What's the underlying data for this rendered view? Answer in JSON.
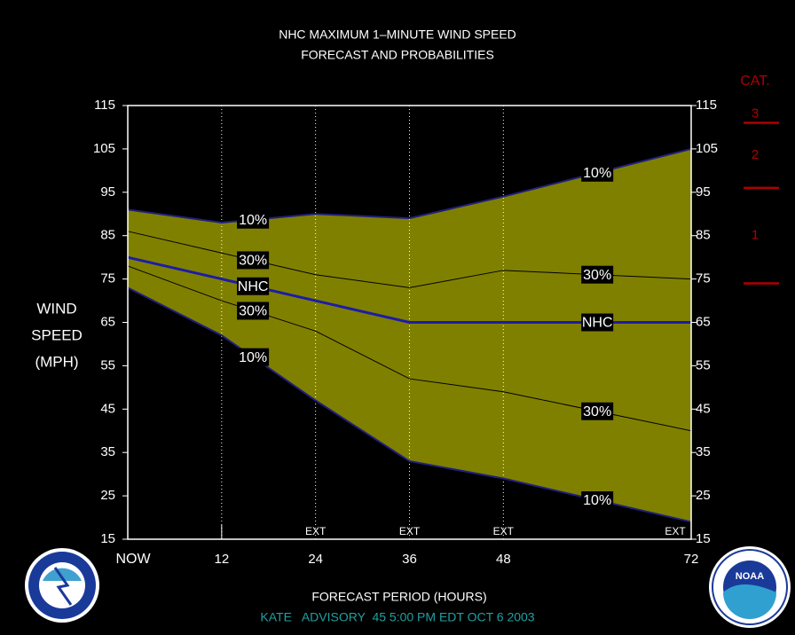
{
  "chart_data": {
    "type": "line",
    "title": "NHC MAXIMUM 1–MINUTE WIND SPEED",
    "subtitle": "FORECAST AND PROBABILITIES",
    "y_label": [
      "WIND",
      "SPEED",
      "(MPH)"
    ],
    "x_label": "FORECAST PERIOD (HOURS)",
    "footer": "KATE   ADVISORY  45 5:00 PM EDT OCT 6 2003",
    "x": [
      0,
      12,
      24,
      36,
      48,
      72
    ],
    "xlim": [
      0,
      72
    ],
    "xticks": [
      {
        "value": 0,
        "label": "NOW"
      },
      12,
      24,
      36,
      48,
      72
    ],
    "ylim": [
      15,
      115
    ],
    "yticks": [
      15,
      25,
      35,
      45,
      55,
      65,
      75,
      85,
      95,
      105,
      115
    ],
    "fill_color": "#808000",
    "series": [
      {
        "name": "10%",
        "color": "#202080",
        "values": [
          91,
          88,
          90,
          89,
          94,
          105
        ]
      },
      {
        "name": "30%",
        "color": "#000000",
        "values": [
          86,
          81,
          76,
          73,
          77,
          75
        ]
      },
      {
        "name": "NHC",
        "color": "#1c1ca8",
        "values": [
          80,
          75,
          70,
          65,
          65,
          65
        ]
      },
      {
        "name": "30%",
        "color": "#000000",
        "values": [
          78,
          70,
          63,
          52,
          49,
          40
        ]
      },
      {
        "name": "10%",
        "color": "#202080",
        "values": [
          73,
          62,
          47,
          33,
          29,
          19
        ]
      }
    ],
    "ext_label": "EXT",
    "ext_hours": [
      24,
      36,
      48,
      72
    ],
    "category_scale": {
      "title": "CAT.",
      "labels": [
        "3",
        "2",
        "1"
      ],
      "label_values": [
        113,
        103.5,
        85
      ],
      "thresholds": [
        111,
        96,
        74
      ],
      "color": "#b00000"
    },
    "logos": {
      "right": "NOAA"
    }
  }
}
